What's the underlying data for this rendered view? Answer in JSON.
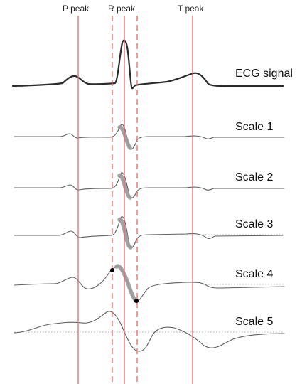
{
  "markers": {
    "p_peak": "P peak",
    "r_peak": "R peak",
    "t_peak": "T peak"
  },
  "traces": {
    "ecg": "ECG signal",
    "scale1": "Scale 1",
    "scale2": "Scale 2",
    "scale3": "Scale 3",
    "scale4": "Scale 4",
    "scale5": "Scale 5"
  },
  "colors": {
    "marker_line": "#e8686a",
    "signal": "#2b2b2b",
    "wavelet": "#606060",
    "highlight": "#9a9a9a",
    "baseline": "#9a9a9a"
  }
}
